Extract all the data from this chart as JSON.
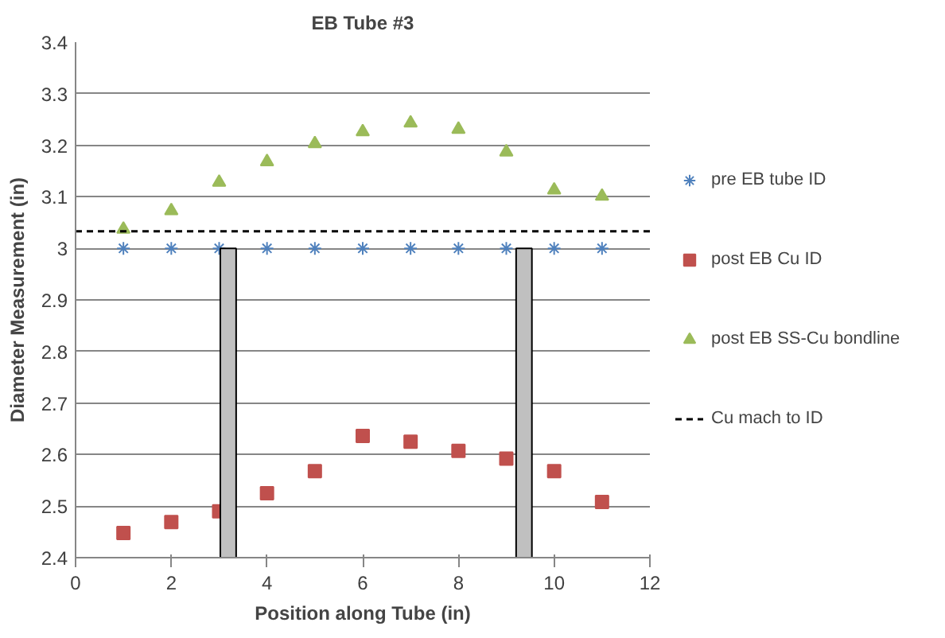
{
  "chart_data": {
    "type": "scatter",
    "title": "EB Tube #3",
    "xlabel": "Position along Tube (in)",
    "ylabel": "Diameter Measurement (in)",
    "x": [
      1,
      2,
      3,
      4,
      5,
      6,
      7,
      8,
      9,
      10,
      11
    ],
    "series": [
      {
        "name": "pre EB tube ID",
        "color": "#4f81bd",
        "marker": "cross",
        "values": [
          3.0,
          3.0,
          3.0,
          3.0,
          3.0,
          3.0,
          3.0,
          3.0,
          3.0,
          3.0,
          3.0
        ]
      },
      {
        "name": "post EB Cu ID",
        "color": "#c0504d",
        "marker": "square",
        "values": [
          2.448,
          2.469,
          2.49,
          2.525,
          2.568,
          2.636,
          2.625,
          2.607,
          2.592,
          2.568,
          2.508
        ]
      },
      {
        "name": "post EB SS-Cu bondline",
        "color": "#9bbb59",
        "marker": "triangle",
        "values": [
          3.037,
          3.073,
          3.128,
          3.168,
          3.203,
          3.226,
          3.243,
          3.231,
          3.187,
          3.113,
          3.101
        ]
      },
      {
        "type": "bar",
        "color": "#c0c0c0",
        "x": [
          3.19,
          9.37
        ],
        "base": [
          2.4,
          2.4
        ],
        "values": [
          0.6,
          0.6
        ]
      }
    ],
    "ref_lines": [
      {
        "axis": "y",
        "value": 3.033,
        "label": "Cu mach to ID",
        "color": "#000000",
        "line_style": "dashed"
      }
    ],
    "xlim": [
      0,
      12
    ],
    "xticks": [
      0,
      2,
      4,
      6,
      8,
      10,
      12
    ],
    "ylim": [
      2.4,
      3.4
    ],
    "yticks": [
      2.4,
      2.5,
      2.6,
      2.7,
      2.8,
      2.9,
      3,
      3.1,
      3.2,
      3.3,
      3.4
    ],
    "grid": "y",
    "legend": "right"
  }
}
